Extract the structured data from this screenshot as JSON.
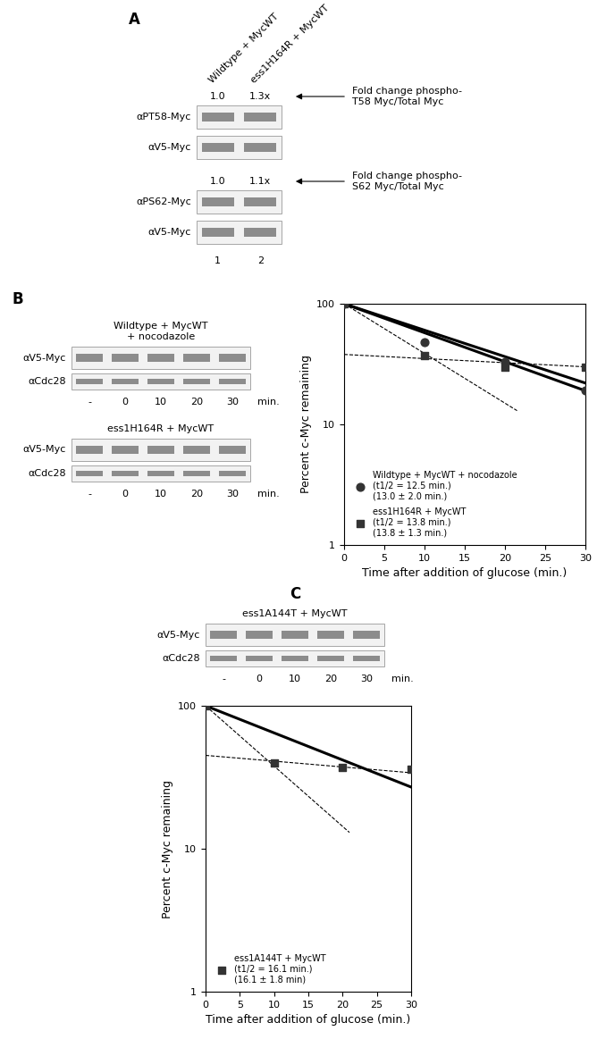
{
  "figure": {
    "panel_A": {
      "label": "A",
      "columns": [
        "Wildtype + MycWT",
        "ess1H164R + MycWT"
      ],
      "groups": [
        {
          "fold_labels": [
            "1.0",
            "1.3x"
          ],
          "fold_note": "Fold change phospho-\nT58 Myc/Total Myc",
          "rows": [
            "αPT58-Myc",
            "αV5-Myc"
          ]
        },
        {
          "fold_labels": [
            "1.0",
            "1.1x"
          ],
          "fold_note": "Fold change phospho-\nS62 Myc/Total Myc",
          "rows": [
            "αPS62-Myc",
            "αV5-Myc"
          ]
        }
      ],
      "lanes": [
        "1",
        "2"
      ]
    },
    "panel_B": {
      "label": "B",
      "blots": [
        {
          "title": "Wildtype + MycWT\n+ nocodazole",
          "rows": [
            "αV5-Myc",
            "αCdc28"
          ],
          "lanes": [
            "-",
            "0",
            "10",
            "20",
            "30"
          ],
          "unit": "min."
        },
        {
          "title": "ess1H164R + MycWT",
          "rows": [
            "αV5-Myc",
            "αCdc28"
          ],
          "lanes": [
            "-",
            "0",
            "10",
            "20",
            "30"
          ],
          "unit": "min."
        }
      ]
    },
    "panel_C": {
      "label": "C",
      "blots": [
        {
          "title": "ess1A144T + MycWT",
          "rows": [
            "αV5-Myc",
            "αCdc28"
          ],
          "lanes": [
            "-",
            "0",
            "10",
            "20",
            "30"
          ],
          "unit": "min."
        }
      ]
    }
  },
  "chart_data": [
    {
      "type": "scatter",
      "xlabel": "Time after addition of glucose (min.)",
      "ylabel": "Percent c-Myc remaining",
      "xlim": [
        0,
        30
      ],
      "xticks": [
        0,
        5,
        10,
        15,
        20,
        25,
        30
      ],
      "ylim": [
        1,
        100
      ],
      "yticks": [
        1,
        10,
        100
      ],
      "log": "y",
      "legend": "lower left",
      "series": [
        {
          "name": "Wildtype + MycWT + nocodazole",
          "annotations": [
            "(t1/2 = 12.5 min.)",
            "(13.0 ± 2.0 min.)"
          ],
          "type": "scatter",
          "marker": "circle",
          "color": "#333333",
          "x": [
            0,
            10,
            20,
            30
          ],
          "values": [
            100,
            48,
            33,
            19
          ]
        },
        {
          "name": "ess1H164R + MycWT",
          "annotations": [
            "(t1/2 = 13.8 min.)",
            "(13.8 ± 1.3 min.)"
          ],
          "type": "scatter",
          "marker": "square",
          "color": "#333333",
          "x": [
            0,
            10,
            20,
            30
          ],
          "values": [
            100,
            37,
            30,
            30
          ]
        },
        {
          "type": "line",
          "line_style": "solid",
          "color": "#000000",
          "x": [
            0,
            30
          ],
          "values": [
            100,
            19
          ]
        },
        {
          "type": "line",
          "line_style": "solid",
          "color": "#000000",
          "x": [
            0,
            30
          ],
          "values": [
            100,
            22
          ]
        },
        {
          "type": "line",
          "line_style": "dashed",
          "color": "#000000",
          "x": [
            0,
            21.5
          ],
          "values": [
            100,
            13
          ]
        },
        {
          "type": "line",
          "line_style": "dashed",
          "color": "#000000",
          "x": [
            0,
            30
          ],
          "values": [
            38,
            30
          ]
        }
      ]
    },
    {
      "type": "scatter",
      "xlabel": "Time after addition of glucose (min.)",
      "ylabel": "Percent c-Myc remaining",
      "xlim": [
        0,
        30
      ],
      "xticks": [
        0,
        5,
        10,
        15,
        20,
        25,
        30
      ],
      "ylim": [
        1,
        100
      ],
      "yticks": [
        1,
        10,
        100
      ],
      "log": "y",
      "legend": "lower left",
      "series": [
        {
          "name": "ess1A144T + MycWT",
          "annotations": [
            "(t1/2 = 16.1 min.)",
            "(16.1 ± 1.8 min)"
          ],
          "type": "scatter",
          "marker": "square",
          "color": "#333333",
          "x": [
            0,
            10,
            20,
            30
          ],
          "values": [
            100,
            40,
            37,
            36
          ]
        },
        {
          "type": "line",
          "line_style": "solid",
          "color": "#000000",
          "x": [
            0,
            30
          ],
          "values": [
            100,
            27
          ]
        },
        {
          "type": "line",
          "line_style": "dashed",
          "color": "#000000",
          "x": [
            0,
            21
          ],
          "values": [
            100,
            13
          ]
        },
        {
          "type": "line",
          "line_style": "dashed",
          "color": "#000000",
          "x": [
            0,
            30
          ],
          "values": [
            45,
            34
          ]
        }
      ]
    }
  ]
}
